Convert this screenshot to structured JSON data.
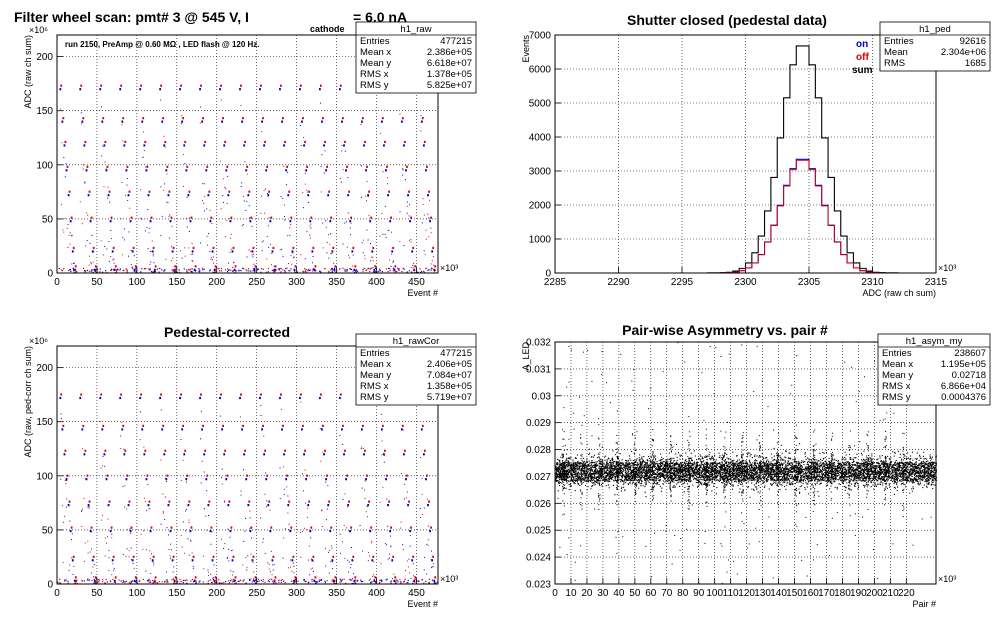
{
  "title_left": "Filter wheel scan: pmt#   3 @   545 V, I",
  "title_cathode": "cathode",
  "title_right": "= 6.0 nA",
  "colors": {
    "on": "#0000cc",
    "off": "#dd0000",
    "sum": "#000000",
    "grid": "#000000"
  },
  "legend": {
    "on": "on",
    "off": "off",
    "sum": "sum"
  },
  "chart_data": [
    {
      "id": "raw",
      "type": "scatter",
      "title": "",
      "xlabel": "Event #",
      "ylabel": "ADC (raw ch sum)",
      "x_exponent": "×10³",
      "y_exponent": "×10⁶",
      "xlim": [
        0,
        477
      ],
      "ylim": [
        0,
        220
      ],
      "xticks": [
        0,
        50,
        100,
        150,
        200,
        250,
        300,
        350,
        400,
        450
      ],
      "yticks": [
        0,
        50,
        100,
        150,
        200
      ],
      "note": "run 2150, PreAmp @ 0.60 MΩ , LED flash @  120 Hz.",
      "stats": {
        "name": "h1_raw",
        "rows": [
          [
            "Entries",
            "477215"
          ],
          [
            "Mean x",
            "2.386e+05"
          ],
          [
            "Mean y",
            "6.618e+07"
          ],
          [
            "RMS x",
            "1.378e+05"
          ],
          [
            "RMS y",
            "5.825e+07"
          ]
        ]
      },
      "levels": [
        170,
        140,
        118,
        95,
        72,
        48,
        20,
        3
      ],
      "cycle": 25
    },
    {
      "id": "ped",
      "type": "line",
      "title": "Shutter closed (pedestal data)",
      "xlabel": "ADC (raw ch sum)",
      "ylabel": "Events",
      "x_exponent": "×10³",
      "xlim": [
        2285,
        2315
      ],
      "ylim": [
        0,
        7000
      ],
      "xticks": [
        2285,
        2290,
        2295,
        2300,
        2305,
        2310,
        2315
      ],
      "yticks": [
        0,
        1000,
        2000,
        3000,
        4000,
        5000,
        6000,
        7000
      ],
      "stats": {
        "name": "h1_ped",
        "rows": [
          [
            "Entries",
            "92616"
          ],
          [
            "Mean",
            "2.304e+06"
          ],
          [
            "RMS",
            "1685"
          ]
        ]
      },
      "series": [
        {
          "name": "sum",
          "mean": 2304.5,
          "sigma": 1.7,
          "peak": 6750
        },
        {
          "name": "on",
          "mean": 2304.5,
          "sigma": 1.7,
          "peak": 3380
        },
        {
          "name": "off",
          "mean": 2304.5,
          "sigma": 1.7,
          "peak": 3350
        }
      ]
    },
    {
      "id": "rawCor",
      "type": "scatter",
      "title": "Pedestal-corrected",
      "xlabel": "Event #",
      "ylabel": "ADC (raw, ped-corr ch sum)",
      "x_exponent": "×10³",
      "y_exponent": "×10⁶",
      "xlim": [
        0,
        477
      ],
      "ylim": [
        0,
        220
      ],
      "xticks": [
        0,
        50,
        100,
        150,
        200,
        250,
        300,
        350,
        400,
        450
      ],
      "yticks": [
        0,
        50,
        100,
        150,
        200
      ],
      "stats": {
        "name": "h1_rawCor",
        "rows": [
          [
            "Entries",
            "477215"
          ],
          [
            "Mean x",
            "2.406e+05"
          ],
          [
            "Mean y",
            "7.084e+07"
          ],
          [
            "RMS x",
            "1.358e+05"
          ],
          [
            "RMS y",
            "5.719e+07"
          ]
        ]
      },
      "levels": [
        172,
        143,
        120,
        97,
        73,
        49,
        22,
        3
      ],
      "cycle": 25
    },
    {
      "id": "asym",
      "type": "scatter",
      "title": "Pair-wise Asymmetry vs. pair #",
      "xlabel": "Pair #",
      "ylabel": "A_LED",
      "x_exponent": "×10³",
      "xlim": [
        0,
        238.6
      ],
      "ylim": [
        0.023,
        0.032
      ],
      "xticks": [
        0,
        10,
        20,
        30,
        40,
        50,
        60,
        70,
        80,
        90,
        100,
        110,
        120,
        130,
        140,
        150,
        160,
        170,
        180,
        190,
        200,
        210,
        220
      ],
      "yticks": [
        0.023,
        0.024,
        0.025,
        0.026,
        0.027,
        0.028,
        0.029,
        0.03,
        0.031,
        0.032
      ],
      "stats": {
        "name": "h1_asym_my",
        "rows": [
          [
            "Entries",
            "238607"
          ],
          [
            "Mean x",
            "1.195e+05"
          ],
          [
            "Mean y",
            "0.02718"
          ],
          [
            "RMS x",
            "6.866e+04"
          ],
          [
            "RMS y",
            "0.0004376"
          ]
        ]
      },
      "band_center": 0.0272,
      "band_halfwidth": 0.0005
    }
  ]
}
